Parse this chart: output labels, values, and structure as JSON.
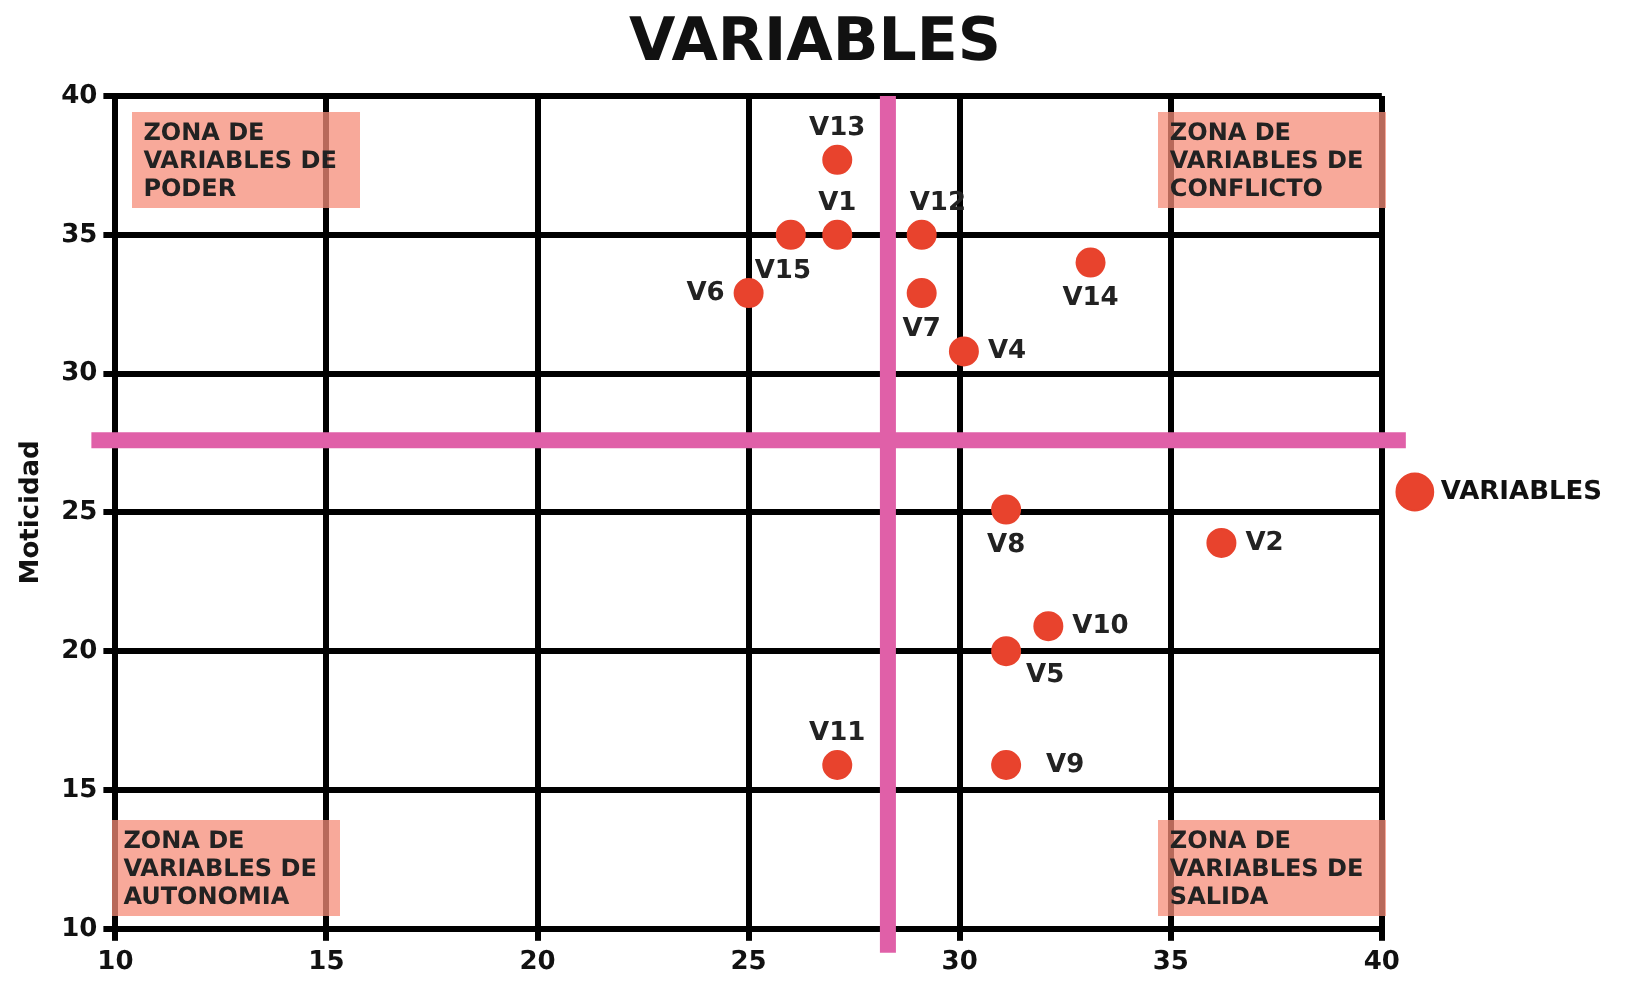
{
  "chart_data": {
    "type": "scatter",
    "title": "VARIABLES",
    "ylabel": "Moticidad",
    "series": [
      {
        "name": "VARIABLES",
        "color": "#e8432d",
        "x": [
          27.1,
          36.2,
          30.1,
          31.1,
          25.0,
          29.1,
          31.1,
          31.1,
          32.1,
          27.1,
          29.1,
          27.1,
          33.1,
          26.0
        ],
        "values": [
          35.0,
          23.9,
          30.8,
          20.0,
          32.9,
          32.9,
          25.1,
          15.9,
          20.9,
          15.9,
          35.0,
          37.7,
          34.0,
          35.0
        ],
        "value_labels": [
          "V1",
          "V2",
          "V4",
          "V5",
          "V6",
          "V7",
          "V8",
          "V9",
          "V10",
          "V11",
          "V12",
          "V13",
          "V14",
          "V15"
        ]
      }
    ],
    "xlim": [
      10,
      40
    ],
    "xticks": [
      10,
      15,
      20,
      25,
      30,
      35,
      40
    ],
    "ylim": [
      10,
      40
    ],
    "yticks": [
      10,
      15,
      20,
      25,
      30,
      35,
      40
    ],
    "grid": true,
    "legend": "right",
    "marker": "circle",
    "ref_lines": [
      {
        "axis": "x",
        "value": 28.3,
        "color": "#e060a8"
      },
      {
        "axis": "y",
        "value": 27.6,
        "color": "#e060a8"
      }
    ],
    "annotations": [
      "ZONA DE VARIABLES DE PODER",
      "ZONA DE VARIABLES DE CONFLICTO",
      "ZONA DE VARIABLES DE AUTONOMIA",
      "ZONA DE VARIABLES DE SALIDA"
    ]
  }
}
